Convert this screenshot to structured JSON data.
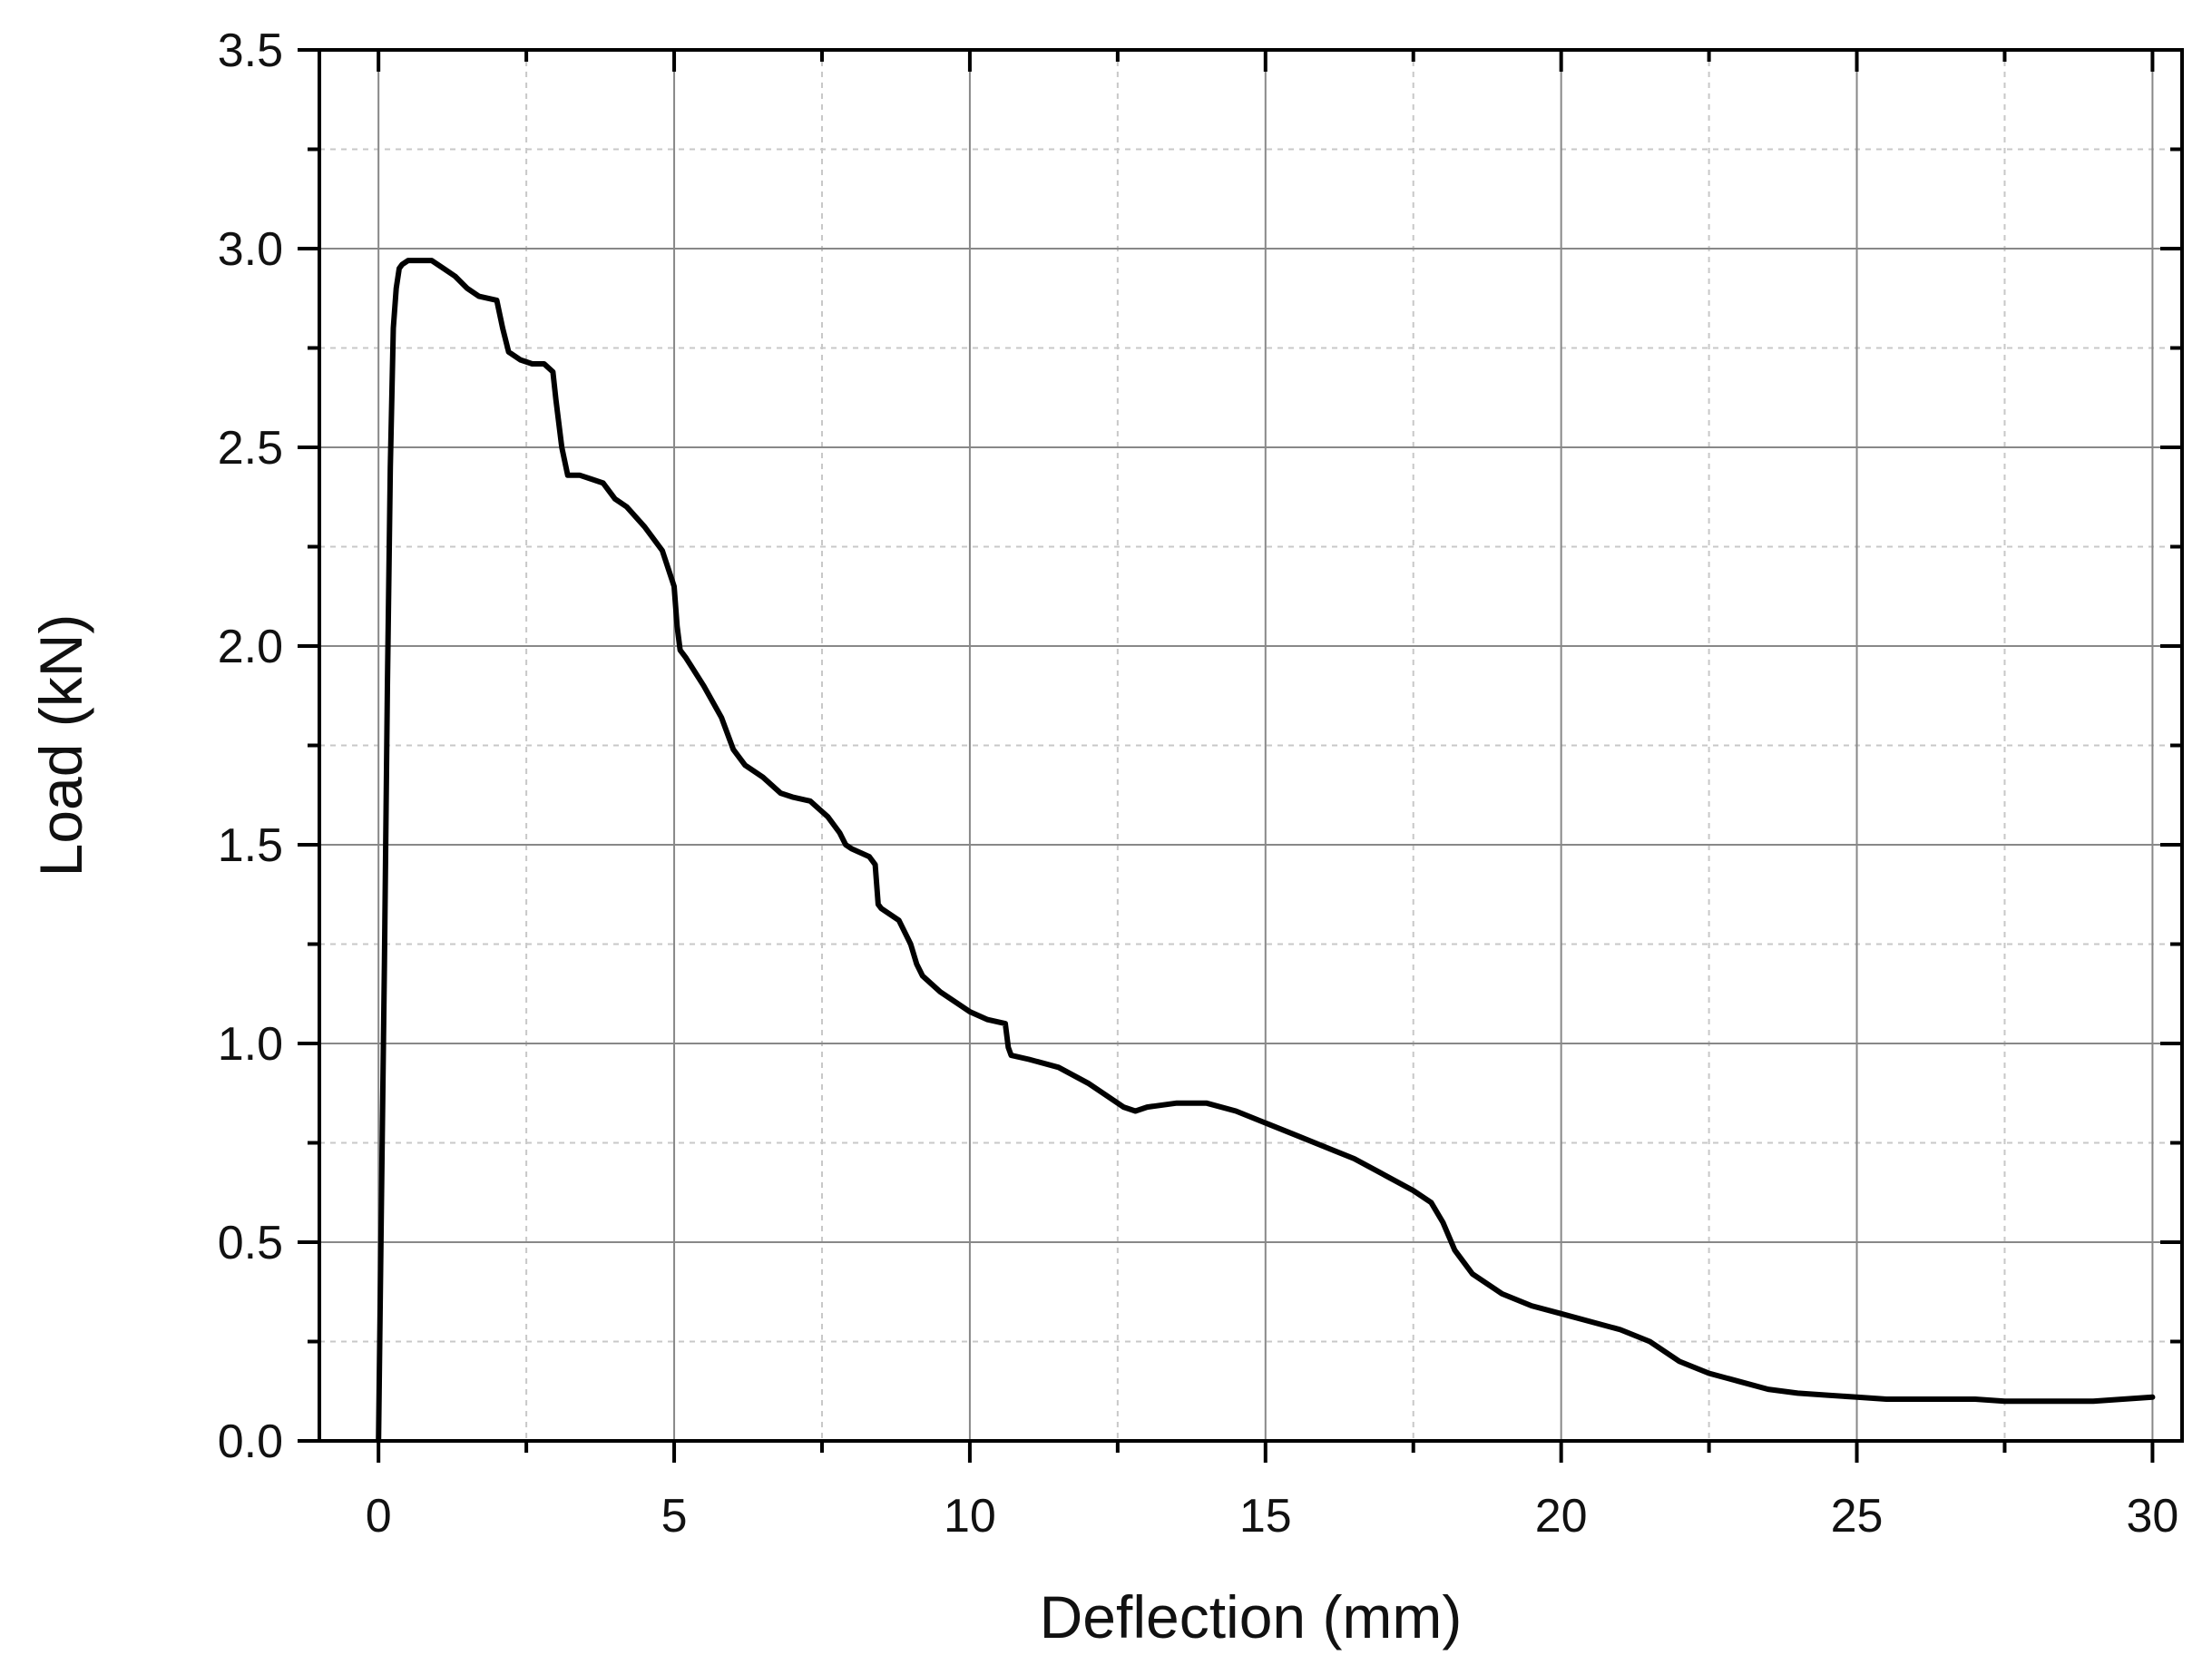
{
  "chart_data": {
    "type": "line",
    "title": "",
    "xlabel": "Deflection (mm)",
    "ylabel": "Load (kN)",
    "xlim": [
      -1,
      30.5
    ],
    "ylim": [
      0,
      3.5
    ],
    "x_ticks": [
      0,
      5,
      10,
      15,
      20,
      25,
      30
    ],
    "x_tick_labels": [
      "0",
      "5",
      "10",
      "15",
      "20",
      "25",
      "30"
    ],
    "y_ticks": [
      0.0,
      0.5,
      1.0,
      1.5,
      2.0,
      2.5,
      3.0,
      3.5
    ],
    "y_tick_labels": [
      "0.0",
      "0.5",
      "1.0",
      "1.5",
      "2.0",
      "2.5",
      "3.0",
      "3.5"
    ],
    "grid": true,
    "minor_grid": true,
    "legend": "none",
    "line_color": "#000000",
    "grid_color": "#888888",
    "minor_grid_color": "#c8c8c8",
    "series": [
      {
        "x": [
          0.0,
          0.05,
          0.1,
          0.15,
          0.2,
          0.25,
          0.3,
          0.35,
          0.4,
          0.5,
          0.7,
          0.9,
          1.1,
          1.3,
          1.5,
          1.7,
          2.0,
          2.1,
          2.2,
          2.4,
          2.6,
          2.8,
          2.95,
          3.0,
          3.1,
          3.2,
          3.4,
          3.6,
          3.8,
          4.0,
          4.2,
          4.5,
          4.8,
          5.0,
          5.05,
          5.1,
          5.2,
          5.5,
          5.8,
          6.0,
          6.2,
          6.5,
          6.8,
          7.0,
          7.3,
          7.6,
          7.8,
          7.9,
          8.0,
          8.3,
          8.4,
          8.45,
          8.5,
          8.8,
          9.0,
          9.1,
          9.2,
          9.5,
          9.8,
          10.0,
          10.3,
          10.6,
          10.65,
          10.7,
          11.0,
          11.5,
          12.0,
          12.3,
          12.6,
          12.8,
          13.0,
          13.5,
          14.0,
          14.5,
          15.0,
          15.5,
          16.0,
          16.5,
          17.0,
          17.5,
          17.8,
          18.0,
          18.2,
          18.5,
          19.0,
          19.5,
          20.0,
          20.5,
          21.0,
          21.5,
          22.0,
          22.5,
          23.0,
          23.5,
          24.0,
          24.5,
          25.0,
          25.5,
          26.0,
          26.5,
          27.0,
          27.5,
          28.0,
          28.5,
          29.0,
          29.5,
          30.0
        ],
        "y": [
          0.0,
          0.6,
          1.2,
          1.9,
          2.45,
          2.8,
          2.9,
          2.95,
          2.96,
          2.97,
          2.97,
          2.97,
          2.95,
          2.93,
          2.9,
          2.88,
          2.87,
          2.8,
          2.74,
          2.72,
          2.71,
          2.71,
          2.69,
          2.62,
          2.5,
          2.43,
          2.43,
          2.42,
          2.41,
          2.37,
          2.35,
          2.3,
          2.24,
          2.15,
          2.05,
          1.99,
          1.97,
          1.9,
          1.82,
          1.74,
          1.7,
          1.67,
          1.63,
          1.62,
          1.61,
          1.57,
          1.53,
          1.5,
          1.49,
          1.47,
          1.45,
          1.35,
          1.34,
          1.31,
          1.25,
          1.2,
          1.17,
          1.13,
          1.1,
          1.08,
          1.06,
          1.05,
          0.99,
          0.97,
          0.96,
          0.94,
          0.9,
          0.87,
          0.84,
          0.83,
          0.84,
          0.85,
          0.85,
          0.83,
          0.8,
          0.77,
          0.74,
          0.71,
          0.67,
          0.63,
          0.6,
          0.55,
          0.48,
          0.42,
          0.37,
          0.34,
          0.32,
          0.3,
          0.28,
          0.25,
          0.2,
          0.17,
          0.15,
          0.13,
          0.12,
          0.115,
          0.11,
          0.105,
          0.105,
          0.105,
          0.105,
          0.1,
          0.1,
          0.1,
          0.1,
          0.105,
          0.11
        ]
      }
    ]
  }
}
